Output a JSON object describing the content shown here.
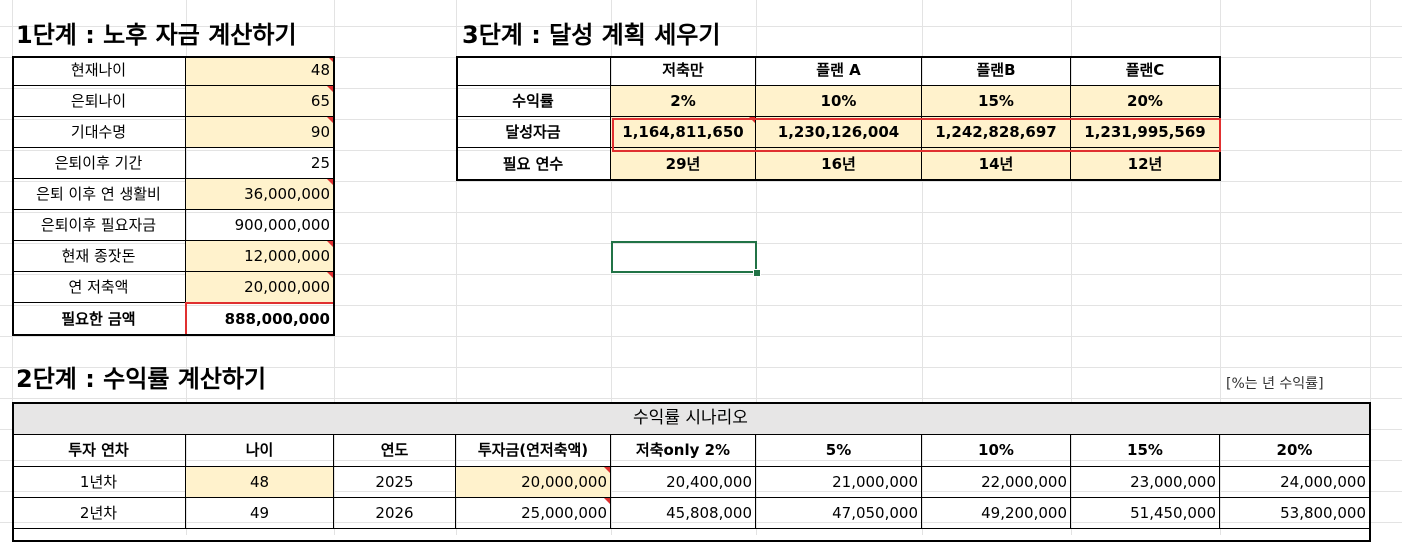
{
  "step1": {
    "title": "1단계 : 노후 자금 계산하기",
    "rows": [
      {
        "label": "현재나이",
        "value": "48"
      },
      {
        "label": "은퇴나이",
        "value": "65"
      },
      {
        "label": "기대수명",
        "value": "90"
      },
      {
        "label": "은퇴이후 기간",
        "value": "25"
      },
      {
        "label": "은퇴 이후 연 생활비",
        "value": "36,000,000"
      },
      {
        "label": "은퇴이후 필요자금",
        "value": "900,000,000"
      },
      {
        "label": "현재 종잣돈",
        "value": "12,000,000"
      },
      {
        "label": "연 저축액",
        "value": "20,000,000"
      },
      {
        "label": "필요한 금액",
        "value": "888,000,000"
      }
    ]
  },
  "step3": {
    "title": "3단계 : 달성 계획 세우기",
    "headers": [
      "",
      "저축만",
      "플랜 A",
      "플랜B",
      "플랜C"
    ],
    "rows": [
      {
        "label": "수익률",
        "values": [
          "2%",
          "10%",
          "15%",
          "20%"
        ]
      },
      {
        "label": "달성자금",
        "values": [
          "1,164,811,650",
          "1,230,126,004",
          "1,242,828,697",
          "1,231,995,569"
        ]
      },
      {
        "label": "필요 연수",
        "values": [
          "29년",
          "16년",
          "14년",
          "12년"
        ]
      }
    ]
  },
  "step2": {
    "title": "2단계 : 수익률 계산하기",
    "note": "[%는 년 수익률]",
    "scenario_title": "수익률 시나리오",
    "headers": [
      "투자 연차",
      "나이",
      "연도",
      "투자금(연저축액)",
      "저축only 2%",
      "5%",
      "10%",
      "15%",
      "20%"
    ],
    "rows": [
      [
        "1년차",
        "48",
        "2025",
        "20,000,000",
        "20,400,000",
        "21,000,000",
        "22,000,000",
        "23,000,000",
        "24,000,000"
      ],
      [
        "2년차",
        "49",
        "2026",
        "25,000,000",
        "45,808,000",
        "47,050,000",
        "49,200,000",
        "51,450,000",
        "53,800,000"
      ]
    ]
  }
}
